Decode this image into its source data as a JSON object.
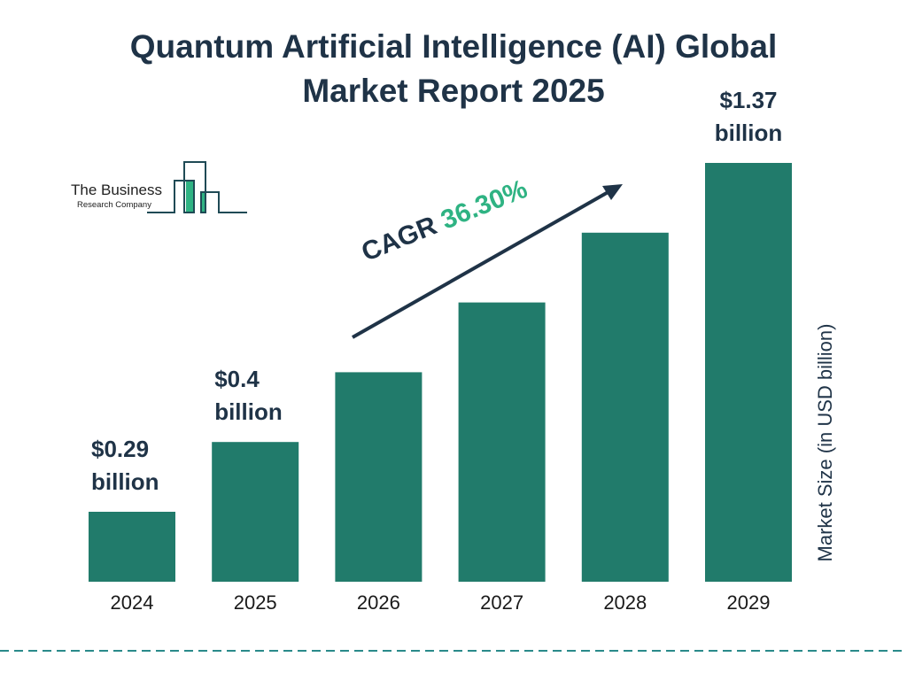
{
  "chart_data": {
    "type": "bar",
    "title": "Quantum Artificial Intelligence (AI) Global Market Report 2025",
    "title_lines": [
      "Quantum Artificial Intelligence (AI) Global",
      "Market Report 2025"
    ],
    "categories": [
      "2024",
      "2025",
      "2026",
      "2027",
      "2028",
      "2029"
    ],
    "values": [
      0.29,
      0.4,
      null,
      null,
      null,
      1.37
    ],
    "data_labels": [
      [
        "$0.29",
        "billion"
      ],
      [
        "$0.4",
        "billion"
      ],
      null,
      null,
      null,
      [
        "$1.37",
        "billion"
      ]
    ],
    "ylabel": "Market Size (in USD billion)",
    "xlabel": "",
    "grid": false,
    "annotation": {
      "label": "CAGR",
      "value": "36.30%"
    },
    "colors": {
      "bar": "#217b6b",
      "text": "#1f3347",
      "accent": "#2fb383",
      "dash": "#2a8a8a"
    }
  },
  "logo": {
    "line1": "The Business",
    "line2": "Research Company"
  }
}
